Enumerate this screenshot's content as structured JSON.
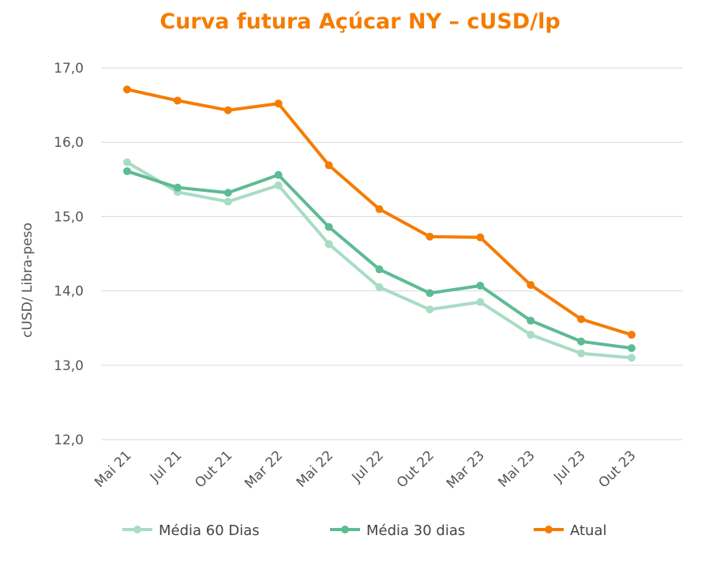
{
  "chart_data": {
    "type": "line",
    "title": "Curva futura Açúcar NY – cUSD/lp",
    "ylabel": "cUSD/ Libra-peso",
    "xlabel": "",
    "ylim": [
      12.0,
      17.0
    ],
    "yticks": [
      "12,0",
      "13,0",
      "14,0",
      "15,0",
      "16,0",
      "17,0"
    ],
    "grid": "horizontal",
    "legend": "bottom",
    "categories": [
      "Mai 21",
      "Jul 21",
      "Out 21",
      "Mar 22",
      "Mai 22",
      "Jul 22",
      "Out 22",
      "Mar 23",
      "Mai 23",
      "Jul 23",
      "Out 23"
    ],
    "series": [
      {
        "name": "Média 60 Dias",
        "color": "#a8dcc4",
        "values": [
          15.73,
          15.33,
          15.2,
          15.42,
          14.63,
          14.05,
          13.75,
          13.85,
          13.41,
          13.16,
          13.1
        ]
      },
      {
        "name": "Média 30 dias",
        "color": "#5dbb94",
        "values": [
          15.61,
          15.39,
          15.32,
          15.56,
          14.86,
          14.29,
          13.97,
          14.07,
          13.6,
          13.32,
          13.23
        ]
      },
      {
        "name": "Atual",
        "color": "#f57c00",
        "values": [
          16.71,
          16.56,
          16.43,
          16.52,
          15.69,
          15.1,
          14.73,
          14.72,
          14.08,
          13.62,
          13.41
        ]
      }
    ]
  }
}
